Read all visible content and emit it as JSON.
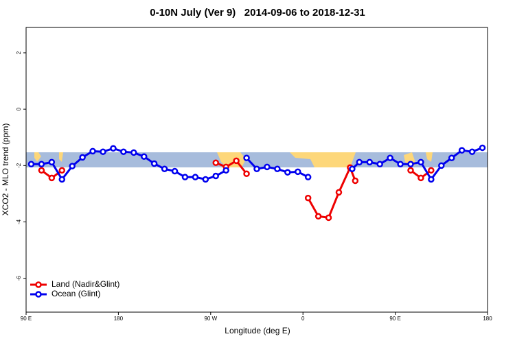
{
  "chart_data": {
    "type": "line",
    "title": "0-10N July (Ver 9)   2014-09-06 to 2018-12-31",
    "xlabel": "Longitude (deg E)",
    "ylabel": "XCO2 - MLO trend (ppm)",
    "xlim": [
      90,
      540
    ],
    "xticks": [
      {
        "value": 90,
        "label": "90 E"
      },
      {
        "value": 180,
        "label": "180"
      },
      {
        "value": 270,
        "label": "90 W"
      },
      {
        "value": 360,
        "label": "0"
      },
      {
        "value": 450,
        "label": "90 E"
      },
      {
        "value": 540,
        "label": "180"
      }
    ],
    "ylim": [
      -7.2,
      2.9
    ],
    "yticks": [
      -6,
      -4,
      -2,
      0,
      2
    ],
    "legend": "lower left",
    "series": [
      {
        "name": "Land (Nadir&Glint)",
        "color": "#ee0000",
        "x": [
          105,
          115,
          125,
          null,
          275,
          285,
          295,
          305,
          null,
          365,
          375,
          385,
          395,
          406,
          411,
          null,
          465,
          475,
          485
        ],
        "values": [
          -2.17,
          -2.44,
          -2.17,
          null,
          -1.9,
          -2.05,
          -1.83,
          -2.29,
          null,
          -3.15,
          -3.8,
          -3.85,
          -2.95,
          -2.07,
          -2.54,
          null,
          -2.17,
          -2.44,
          -2.17
        ]
      },
      {
        "name": "Ocean (Glint)",
        "color": "#0000ee",
        "x": [
          95,
          105,
          115,
          125,
          135,
          145,
          155,
          165,
          175,
          185,
          195,
          205,
          215,
          225,
          235,
          245,
          255,
          265,
          275,
          285,
          null,
          305,
          315,
          325,
          335,
          345,
          355,
          365,
          null,
          408,
          415,
          425,
          435,
          445,
          455,
          465,
          475,
          485,
          495,
          505,
          515,
          525,
          535
        ],
        "values": [
          -1.95,
          -1.95,
          -1.88,
          -2.49,
          -2.02,
          -1.71,
          -1.49,
          -1.51,
          -1.39,
          -1.51,
          -1.54,
          -1.68,
          -1.93,
          -2.12,
          -2.2,
          -2.41,
          -2.41,
          -2.49,
          -2.37,
          -2.17,
          null,
          -1.73,
          -2.12,
          -2.05,
          -2.12,
          -2.24,
          -2.22,
          -2.41,
          null,
          -2.12,
          -1.88,
          -1.88,
          -1.95,
          -1.73,
          -1.95,
          -1.95,
          -1.88,
          -2.49,
          -2.0,
          -1.73,
          -1.46,
          -1.51,
          -1.37
        ]
      }
    ]
  }
}
